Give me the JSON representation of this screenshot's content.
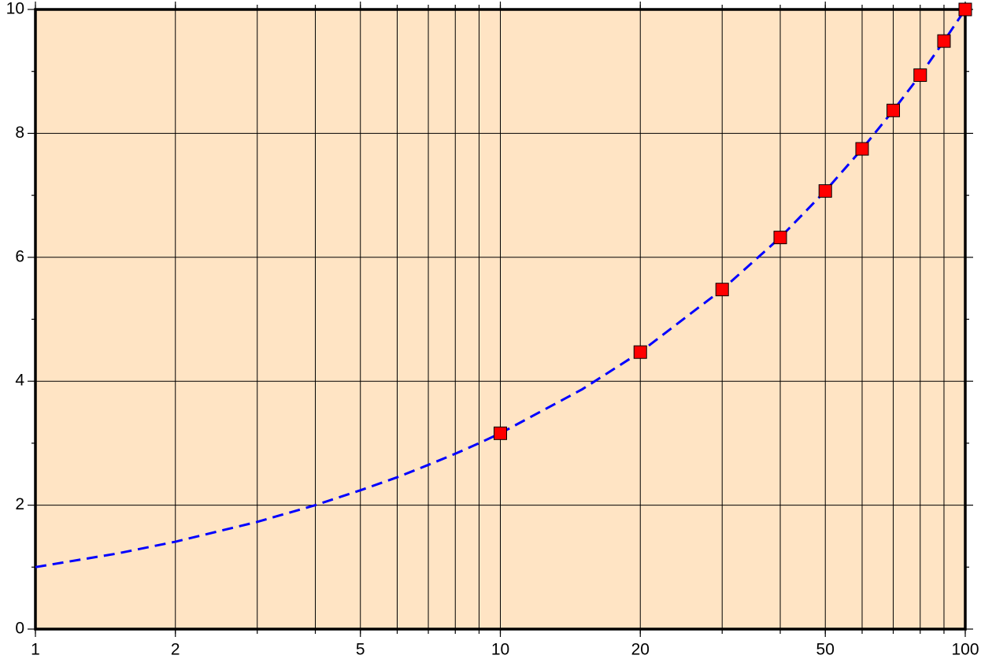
{
  "chart_data": {
    "type": "line",
    "xscale": "log",
    "xlim": [
      1,
      100
    ],
    "ylim": [
      0,
      10
    ],
    "xticks": [
      1,
      2,
      5,
      10,
      20,
      50,
      100
    ],
    "xminor": [
      1,
      2,
      3,
      4,
      5,
      6,
      7,
      8,
      9,
      10,
      20,
      30,
      40,
      50,
      60,
      70,
      80,
      90,
      100
    ],
    "yticks": [
      0,
      2,
      4,
      6,
      8,
      10
    ],
    "yminor": [
      1,
      3,
      5,
      7,
      9
    ],
    "grid": true,
    "background": "#ffe4c4",
    "series": [
      {
        "type": "line",
        "color": "#0000ff",
        "dashed": true,
        "x": [
          1,
          1.5,
          2,
          3,
          4,
          5,
          6,
          7,
          8,
          9,
          10,
          15,
          20,
          30,
          40,
          50,
          60,
          70,
          80,
          90,
          100
        ],
        "values": [
          1,
          1.22,
          1.41,
          1.73,
          2,
          2.24,
          2.45,
          2.65,
          2.83,
          3,
          3.16,
          3.87,
          4.47,
          5.48,
          6.32,
          7.07,
          7.75,
          8.37,
          8.94,
          9.49,
          10
        ]
      },
      {
        "type": "scatter",
        "color": "#ff0000",
        "marker": "square",
        "x": [
          10,
          20,
          30,
          40,
          50,
          60,
          70,
          80,
          90,
          100
        ],
        "values": [
          3.16,
          4.47,
          5.48,
          6.32,
          7.07,
          7.75,
          8.37,
          8.94,
          9.49,
          10
        ]
      }
    ]
  }
}
